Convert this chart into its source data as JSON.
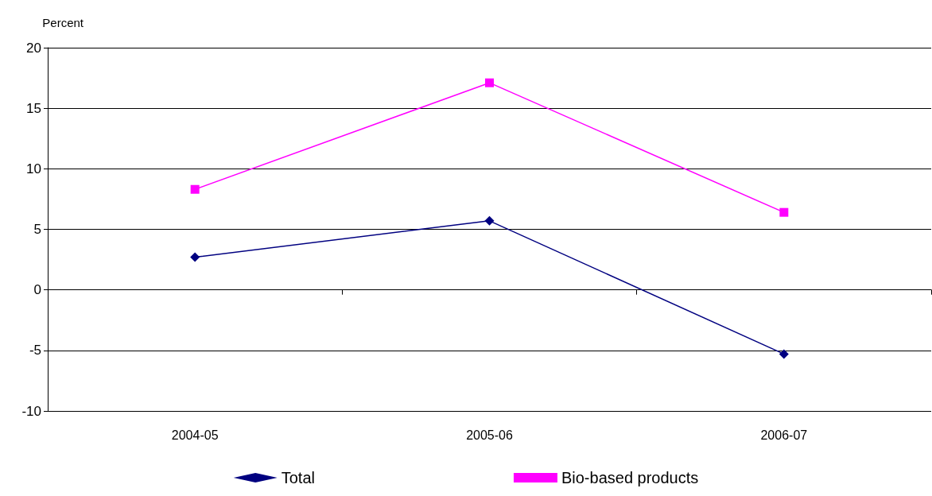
{
  "chart_data": {
    "type": "line",
    "ylabel": "Percent",
    "categories": [
      "2004-05",
      "2005-06",
      "2006-07"
    ],
    "series": [
      {
        "name": "Total",
        "color": "#000080",
        "marker": "diamond",
        "values": [
          2.7,
          5.7,
          -5.3
        ]
      },
      {
        "name": "Bio-based products",
        "color": "#ff00ff",
        "marker": "square",
        "values": [
          8.3,
          17.1,
          6.4
        ]
      }
    ],
    "ylim": [
      -10,
      20
    ],
    "yticks": [
      -10,
      -5,
      0,
      5,
      10,
      15,
      20
    ],
    "grid": "y",
    "legend": "bottom",
    "line_style": "solid"
  }
}
